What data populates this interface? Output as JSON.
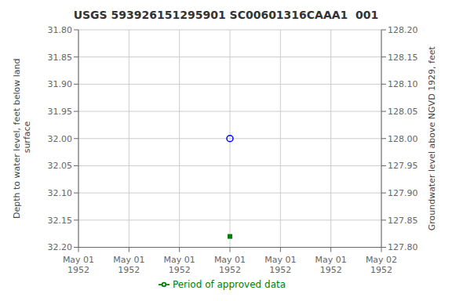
{
  "chart_data": {
    "type": "scatter",
    "title": "USGS 593926151295901 SC00601316CAAA1  001",
    "ylabel": "Depth to water level, feet below land\n surface",
    "y2label": "Groundwater level above NGVD 1929, feet",
    "categories": [
      "May 01\n1952",
      "May 01\n1952",
      "May 01\n1952",
      "May 01\n1952",
      "May 01\n1952",
      "May 01\n1952",
      "May 02\n1952"
    ],
    "series": [
      {
        "color": "blue",
        "marker": "open_circle",
        "values": [
          null,
          null,
          null,
          32.0,
          null,
          null,
          null
        ]
      },
      {
        "name": "Period of approved data",
        "color": "green",
        "marker": "square",
        "values": [
          null,
          null,
          null,
          32.18,
          null,
          null,
          null
        ]
      }
    ],
    "ylim": [
      32.2,
      31.8
    ],
    "yticks": [
      {
        "value": 31.8,
        "label": "31.80"
      },
      31.85,
      {
        "value": 31.9,
        "label": "31.90"
      },
      31.95,
      {
        "value": 32.0,
        "label": "32.00"
      },
      32.05,
      {
        "value": 32.1,
        "label": "32.10"
      },
      32.15,
      {
        "value": 32.2,
        "label": "32.20"
      }
    ],
    "y2lim": [
      127.8,
      128.2
    ],
    "y2ticks": [
      {
        "value": 127.8,
        "label": "127.80"
      },
      127.85,
      {
        "value": 127.9,
        "label": "127.90"
      },
      127.95,
      {
        "value": 128.0,
        "label": "128.00"
      },
      128.05,
      {
        "value": 128.1,
        "label": "128.10"
      },
      128.15,
      {
        "value": 128.2,
        "label": "128.20"
      }
    ],
    "grid": true,
    "legend": "bottom"
  }
}
